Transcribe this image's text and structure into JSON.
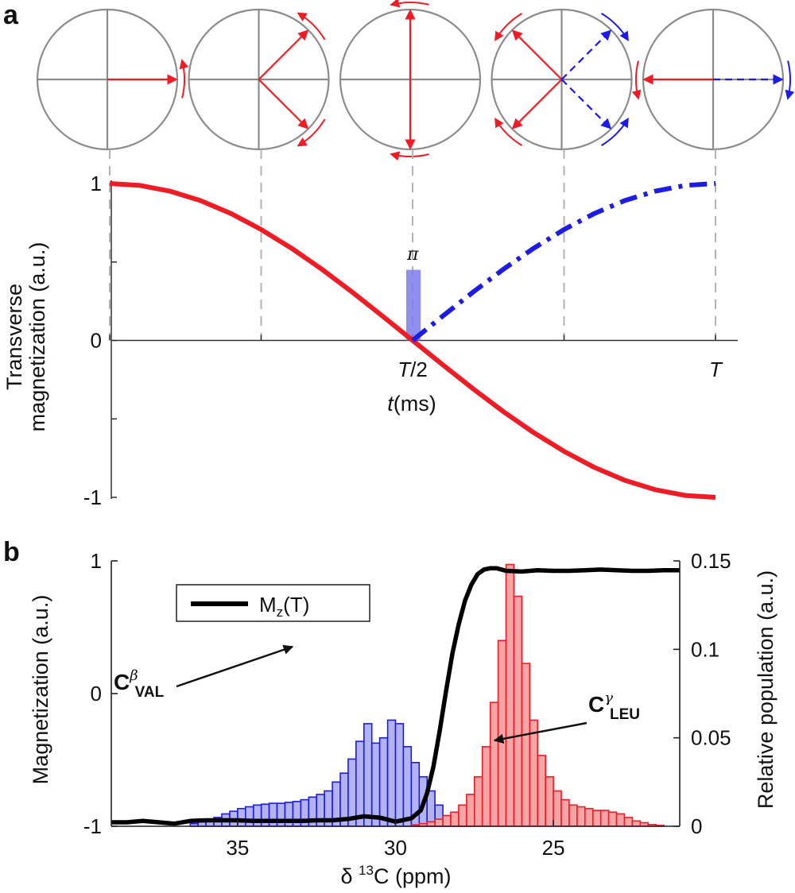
{
  "panel_a": {
    "label": "a",
    "pulse_label": "π",
    "chart_data": {
      "type": "line",
      "title": "",
      "xlabel_var": "t",
      "xlabel_unit": "(ms)",
      "ylabel_line1": "Transverse",
      "ylabel_line2": "magnetization (a.u.)",
      "xlim": [
        0,
        1.0
      ],
      "ylim": [
        -1,
        1
      ],
      "x_ticks": [
        0,
        0.25,
        0.5,
        0.75,
        1.0
      ],
      "x_tick_labels": [
        "",
        "",
        "T/2",
        "",
        "T"
      ],
      "x_tick_label_var": "T",
      "x_tick_label_half": "/2",
      "y_ticks": [
        -1,
        -0.5,
        0,
        0.5,
        1
      ],
      "y_tick_labels": [
        "-1",
        "",
        "0",
        "",
        "1"
      ],
      "series": [
        {
          "name": "red",
          "color": "#ee1c25",
          "style": "solid",
          "x": [
            0,
            0.05,
            0.1,
            0.15,
            0.2,
            0.25,
            0.3,
            0.35,
            0.4,
            0.45,
            0.5,
            0.55,
            0.6,
            0.65,
            0.7,
            0.75,
            0.8,
            0.85,
            0.9,
            0.95,
            1.0
          ],
          "y": [
            1.0,
            0.988,
            0.951,
            0.891,
            0.809,
            0.707,
            0.588,
            0.454,
            0.309,
            0.156,
            0.0,
            -0.156,
            -0.309,
            -0.454,
            -0.588,
            -0.707,
            -0.809,
            -0.891,
            -0.951,
            -0.988,
            -1.0
          ]
        },
        {
          "name": "blue",
          "color": "#1c1ce6",
          "style": "dashdot",
          "x": [
            0.5,
            0.55,
            0.6,
            0.65,
            0.7,
            0.75,
            0.8,
            0.85,
            0.9,
            0.95,
            1.0
          ],
          "y": [
            0.0,
            0.156,
            0.309,
            0.454,
            0.588,
            0.707,
            0.809,
            0.891,
            0.951,
            0.988,
            1.0
          ]
        }
      ],
      "pulse": {
        "x": 0.5,
        "height": 0.45,
        "color": "#7b7bec"
      }
    },
    "phase_diagrams": [
      {
        "t": 0.0,
        "red_angles": [
          0
        ],
        "blue_angles": []
      },
      {
        "t": 0.25,
        "red_angles": [
          45,
          -45
        ],
        "blue_angles": []
      },
      {
        "t": 0.5,
        "red_angles": [
          90,
          -90
        ],
        "blue_angles": []
      },
      {
        "t": 0.75,
        "red_angles": [
          135,
          -135
        ],
        "blue_angles": [
          45,
          -45
        ]
      },
      {
        "t": 1.0,
        "red_angles": [
          180
        ],
        "blue_angles": [
          0
        ]
      }
    ]
  },
  "panel_b": {
    "label": "b",
    "chart_data": {
      "type": "bar",
      "xlabel": "δ ¹³C (ppm)",
      "xlabel_prefix": "δ ",
      "xlabel_sup": "13",
      "xlabel_rest": "C (ppm)",
      "ylabel_left": "Magnetization (a.u.)",
      "ylabel_right": "Relative population (a.u.)",
      "xlim": [
        39,
        21
      ],
      "ylim_left": [
        -1,
        1
      ],
      "ylim_right": [
        0,
        0.15
      ],
      "x_ticks": [
        35,
        30,
        25
      ],
      "x_tick_labels": [
        "35",
        "30",
        "25"
      ],
      "y_left_ticks": [
        -1,
        0,
        1
      ],
      "y_left_tick_labels": [
        "-1",
        "0",
        "1"
      ],
      "y_right_ticks": [
        0,
        0.05,
        0.1,
        0.15
      ],
      "y_right_tick_labels": [
        "0",
        "0.05",
        "0.1",
        "0.15"
      ],
      "bin_width": 0.25,
      "series": [
        {
          "name": "C_VAL_beta",
          "color": "#1c1ce6",
          "fill": "#b3b3f2",
          "start": 36.5,
          "values": [
            0.0015,
            0.0025,
            0.0035,
            0.005,
            0.007,
            0.0085,
            0.01,
            0.011,
            0.012,
            0.0125,
            0.013,
            0.013,
            0.0135,
            0.014,
            0.015,
            0.0165,
            0.018,
            0.02,
            0.025,
            0.03,
            0.038,
            0.048,
            0.058,
            0.047,
            0.05,
            0.06,
            0.058,
            0.045,
            0.036,
            0.028,
            0.02,
            0.012,
            0.006,
            0.003,
            0.002,
            0.001
          ]
        },
        {
          "name": "C_LEU_gamma",
          "color": "#ee1c25",
          "fill": "#f7a4a6",
          "start": 29.5,
          "values": [
            0.0008,
            0.0015,
            0.0025,
            0.004,
            0.006,
            0.008,
            0.012,
            0.018,
            0.028,
            0.045,
            0.07,
            0.105,
            0.148,
            0.13,
            0.092,
            0.06,
            0.04,
            0.028,
            0.02,
            0.015,
            0.012,
            0.011,
            0.01,
            0.009,
            0.009,
            0.008,
            0.007,
            0.005,
            0.003,
            0.002,
            0.001,
            0.0005
          ]
        },
        {
          "name": "Mz(T)",
          "legend": "M",
          "legend_sub": "z",
          "legend_rest": "(T)",
          "color": "#000000",
          "type": "line",
          "x": [
            39,
            38.5,
            38,
            37.5,
            37,
            36.5,
            36,
            35.5,
            35,
            34.5,
            34,
            33.5,
            33,
            32.5,
            32,
            31.5,
            31,
            30.5,
            30,
            29.5,
            29.2,
            29,
            28.8,
            28.6,
            28.4,
            28.2,
            28,
            27.8,
            27.6,
            27.4,
            27.2,
            27,
            26.8,
            26.5,
            26,
            25.5,
            25,
            24.5,
            24,
            23.5,
            23,
            22.5,
            22,
            21.5,
            21
          ],
          "y": [
            -0.97,
            -0.97,
            -0.96,
            -0.97,
            -0.98,
            -0.96,
            -0.955,
            -0.955,
            -0.955,
            -0.96,
            -0.96,
            -0.96,
            -0.96,
            -0.955,
            -0.955,
            -0.945,
            -0.925,
            -0.935,
            -0.965,
            -0.94,
            -0.88,
            -0.75,
            -0.55,
            -0.28,
            0.02,
            0.3,
            0.52,
            0.7,
            0.82,
            0.9,
            0.935,
            0.945,
            0.945,
            0.925,
            0.92,
            0.93,
            0.925,
            0.925,
            0.93,
            0.935,
            0.93,
            0.925,
            0.925,
            0.93,
            0.93
          ]
        }
      ],
      "annotations": [
        {
          "id": "val",
          "main": "C",
          "sup": "β",
          "sub": "VAL"
        },
        {
          "id": "leu",
          "main": "C",
          "sup": "γ",
          "sub": "LEU"
        }
      ],
      "legend_position": "top-left"
    }
  }
}
